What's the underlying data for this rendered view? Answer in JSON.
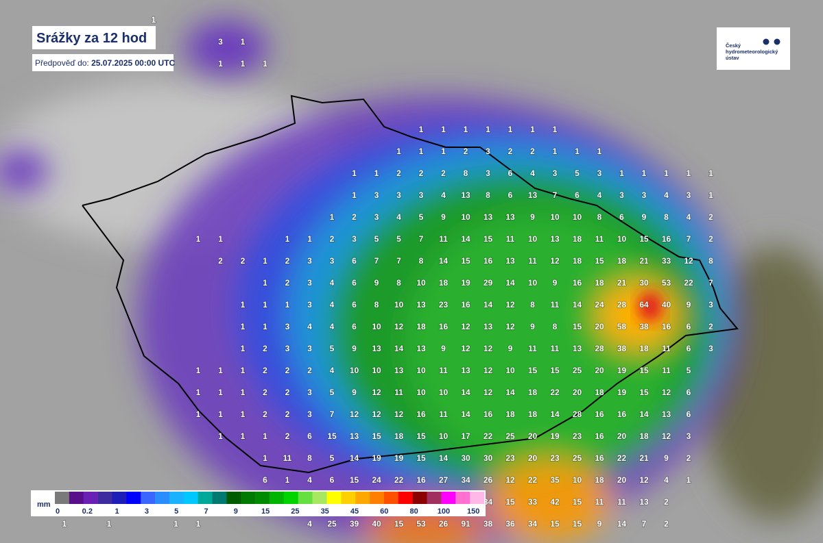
{
  "header": {
    "title": "Srážky za 12 hod",
    "forecast_label": "Předpověď do:",
    "forecast_time": "25.07.2025 00:00 UTC"
  },
  "logo": {
    "lines": [
      "Český",
      "hydrometeorologický",
      "ústav"
    ]
  },
  "legend": {
    "unit": "mm",
    "labels": [
      "0",
      "0.2",
      "1",
      "3",
      "5",
      "7",
      "9",
      "15",
      "25",
      "35",
      "45",
      "60",
      "80",
      "100",
      "150"
    ],
    "colors": [
      "#7a7a7a",
      "#5a0f8a",
      "#6b20b5",
      "#3d2b9f",
      "#1d1db8",
      "#0000ff",
      "#3a66ff",
      "#2a8cff",
      "#1ab2ff",
      "#00c8ff",
      "#00a89a",
      "#007a70",
      "#005a00",
      "#007a00",
      "#008a00",
      "#00b400",
      "#00d400",
      "#66e040",
      "#a8e860",
      "#ffff00",
      "#ffd000",
      "#ffa800",
      "#ff8000",
      "#ff5000",
      "#ff0000",
      "#8b0000",
      "#a03060",
      "#ff00ff",
      "#ff70d0",
      "#ffb8e8"
    ]
  },
  "grid": {
    "rows": [
      [
        null,
        null,
        null,
        null,
        1,
        null,
        null,
        null,
        null,
        null,
        null,
        null,
        null,
        null,
        null,
        null,
        null,
        null,
        null,
        null,
        null,
        null,
        null,
        null,
        null,
        null,
        null,
        null,
        null,
        null
      ],
      [
        null,
        null,
        null,
        null,
        null,
        null,
        null,
        3,
        1,
        null,
        null,
        null,
        null,
        null,
        null,
        null,
        null,
        null,
        null,
        null,
        null,
        null,
        null,
        null,
        null,
        null,
        null,
        null,
        null,
        null
      ],
      [
        null,
        null,
        null,
        null,
        null,
        null,
        null,
        1,
        1,
        1,
        null,
        null,
        null,
        null,
        null,
        null,
        null,
        null,
        null,
        null,
        null,
        null,
        null,
        null,
        null,
        null,
        null,
        null,
        null,
        null
      ],
      [
        null,
        null,
        null,
        null,
        null,
        null,
        null,
        null,
        null,
        null,
        null,
        null,
        null,
        null,
        null,
        null,
        null,
        null,
        null,
        null,
        null,
        null,
        null,
        null,
        null,
        null,
        null,
        null,
        null,
        null
      ],
      [
        null,
        null,
        null,
        null,
        null,
        null,
        null,
        null,
        null,
        null,
        null,
        null,
        null,
        null,
        null,
        null,
        null,
        null,
        null,
        null,
        null,
        null,
        null,
        null,
        null,
        null,
        null,
        null,
        null,
        null
      ],
      [
        null,
        null,
        null,
        null,
        null,
        null,
        null,
        null,
        null,
        null,
        null,
        null,
        null,
        null,
        null,
        null,
        1,
        1,
        1,
        1,
        1,
        1,
        1,
        null,
        null,
        null,
        null,
        null,
        null,
        null
      ],
      [
        null,
        null,
        null,
        null,
        null,
        null,
        null,
        null,
        null,
        null,
        null,
        null,
        null,
        null,
        null,
        1,
        1,
        1,
        2,
        3,
        2,
        2,
        1,
        1,
        1,
        null,
        null,
        null,
        null,
        null
      ],
      [
        null,
        null,
        null,
        null,
        null,
        null,
        null,
        null,
        null,
        null,
        null,
        null,
        null,
        1,
        1,
        2,
        2,
        2,
        8,
        3,
        6,
        4,
        3,
        5,
        3,
        1,
        1,
        1,
        1,
        1
      ],
      [
        null,
        null,
        null,
        null,
        null,
        null,
        null,
        null,
        null,
        null,
        null,
        null,
        null,
        1,
        3,
        3,
        3,
        4,
        13,
        8,
        6,
        13,
        7,
        6,
        4,
        3,
        3,
        4,
        3,
        1
      ],
      [
        null,
        null,
        null,
        null,
        null,
        null,
        null,
        null,
        null,
        null,
        null,
        null,
        1,
        2,
        3,
        4,
        5,
        9,
        10,
        13,
        13,
        9,
        10,
        10,
        8,
        6,
        9,
        8,
        4,
        2
      ],
      [
        null,
        null,
        null,
        null,
        null,
        null,
        1,
        1,
        null,
        null,
        1,
        1,
        2,
        3,
        5,
        5,
        7,
        11,
        14,
        15,
        11,
        10,
        13,
        18,
        11,
        10,
        15,
        16,
        7,
        2
      ],
      [
        null,
        null,
        null,
        null,
        null,
        null,
        null,
        2,
        2,
        1,
        2,
        3,
        3,
        6,
        7,
        7,
        8,
        14,
        15,
        16,
        13,
        11,
        12,
        18,
        15,
        18,
        21,
        33,
        12,
        8
      ],
      [
        null,
        null,
        null,
        null,
        null,
        null,
        null,
        null,
        null,
        1,
        2,
        3,
        4,
        6,
        9,
        8,
        10,
        18,
        19,
        29,
        14,
        10,
        9,
        16,
        18,
        21,
        30,
        53,
        22,
        7
      ],
      [
        null,
        null,
        null,
        null,
        null,
        null,
        null,
        null,
        1,
        1,
        1,
        3,
        4,
        6,
        8,
        10,
        13,
        23,
        16,
        14,
        12,
        8,
        11,
        14,
        24,
        28,
        64,
        40,
        9,
        3
      ],
      [
        null,
        null,
        null,
        null,
        null,
        null,
        null,
        null,
        1,
        1,
        3,
        4,
        4,
        6,
        10,
        12,
        18,
        16,
        12,
        13,
        12,
        9,
        8,
        15,
        20,
        58,
        38,
        16,
        6,
        2
      ],
      [
        null,
        null,
        null,
        null,
        null,
        null,
        null,
        null,
        1,
        2,
        3,
        3,
        5,
        9,
        13,
        14,
        13,
        9,
        12,
        12,
        9,
        11,
        11,
        13,
        28,
        38,
        18,
        11,
        6,
        3
      ],
      [
        null,
        null,
        null,
        null,
        null,
        null,
        1,
        1,
        1,
        2,
        2,
        2,
        4,
        10,
        10,
        13,
        10,
        11,
        13,
        12,
        10,
        15,
        15,
        25,
        20,
        19,
        15,
        11,
        5,
        null
      ],
      [
        null,
        null,
        null,
        null,
        null,
        null,
        1,
        1,
        1,
        2,
        2,
        3,
        5,
        9,
        12,
        11,
        10,
        10,
        14,
        12,
        14,
        18,
        22,
        20,
        18,
        19,
        15,
        12,
        6,
        null
      ],
      [
        null,
        null,
        null,
        null,
        null,
        null,
        1,
        1,
        1,
        2,
        2,
        3,
        7,
        12,
        12,
        12,
        16,
        11,
        14,
        16,
        18,
        18,
        14,
        28,
        16,
        16,
        14,
        13,
        6,
        null
      ],
      [
        null,
        null,
        null,
        null,
        null,
        null,
        null,
        1,
        1,
        1,
        2,
        6,
        15,
        13,
        15,
        18,
        15,
        10,
        17,
        22,
        25,
        20,
        19,
        23,
        16,
        20,
        18,
        12,
        3,
        null
      ],
      [
        null,
        null,
        null,
        null,
        null,
        null,
        null,
        null,
        null,
        1,
        11,
        8,
        5,
        14,
        19,
        19,
        15,
        14,
        30,
        30,
        23,
        20,
        23,
        25,
        16,
        22,
        21,
        9,
        2,
        null
      ],
      [
        null,
        null,
        null,
        null,
        null,
        null,
        null,
        null,
        null,
        6,
        1,
        4,
        6,
        15,
        24,
        22,
        16,
        27,
        34,
        26,
        12,
        22,
        35,
        10,
        18,
        20,
        12,
        4,
        1,
        null
      ],
      [
        null,
        null,
        null,
        null,
        null,
        null,
        null,
        null,
        null,
        null,
        null,
        null,
        null,
        null,
        null,
        null,
        null,
        null,
        null,
        34,
        15,
        33,
        42,
        15,
        11,
        11,
        13,
        2,
        null,
        null
      ],
      [
        1,
        null,
        1,
        null,
        null,
        1,
        1,
        null,
        null,
        null,
        null,
        4,
        25,
        39,
        40,
        15,
        53,
        26,
        91,
        38,
        36,
        34,
        15,
        15,
        9,
        14,
        7,
        2,
        null,
        null
      ]
    ]
  }
}
